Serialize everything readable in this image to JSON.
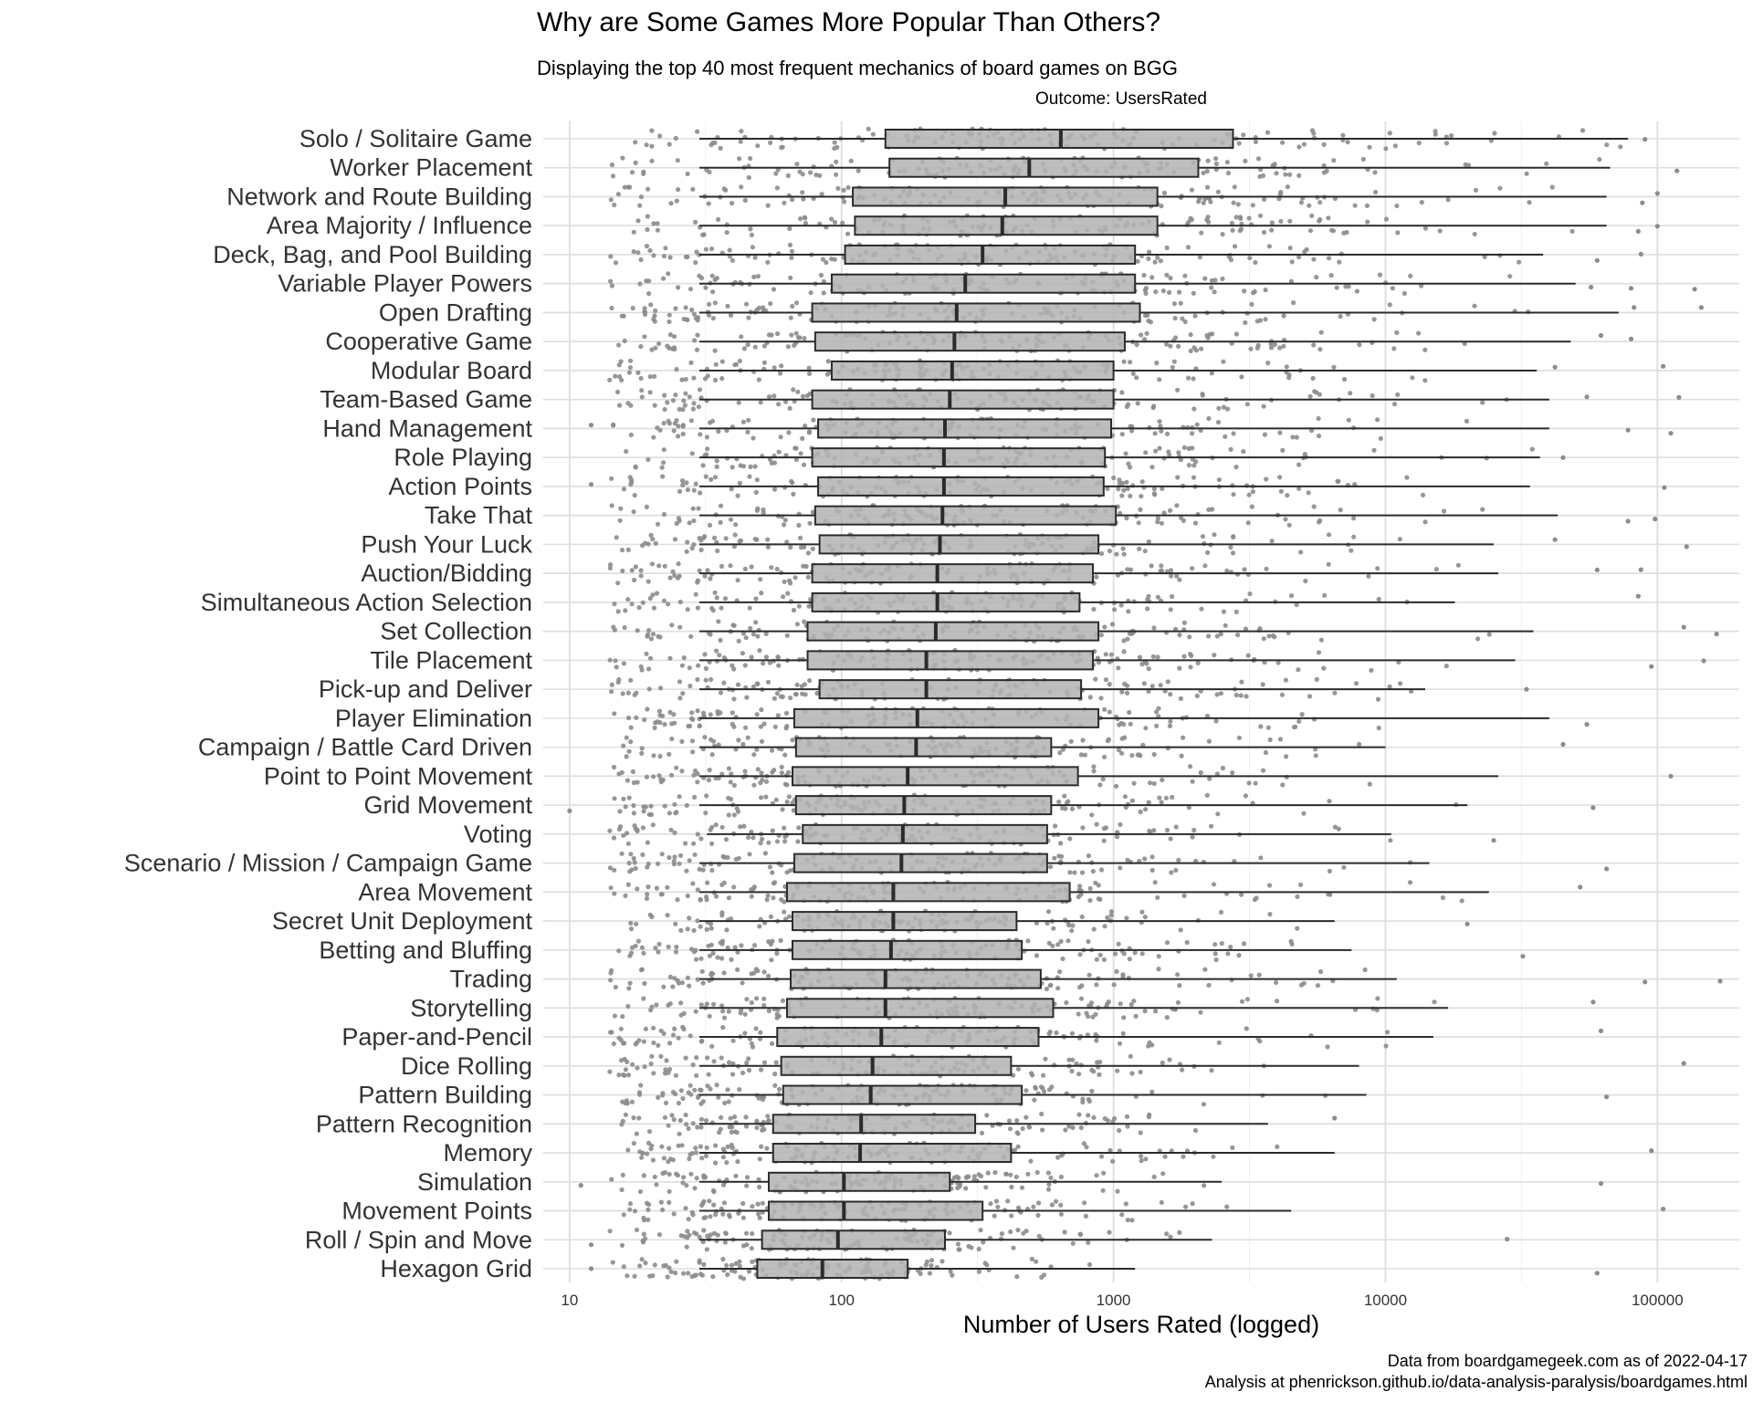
{
  "chart_data": {
    "type": "boxplot",
    "title": "Why are Some Games More Popular Than Others?",
    "subtitle": "Displaying the top 40 most frequent mechanics of board games on BGG",
    "facet_label": "Outcome: UsersRated",
    "xlabel": "Number of Users Rated (logged)",
    "ylabel": "",
    "x_scale": "log10",
    "xlim": [
      8,
      200000
    ],
    "x_ticks": [
      10,
      100,
      1000,
      10000,
      100000
    ],
    "x_tick_labels": [
      "10",
      "100",
      "1000",
      "10000",
      "100000"
    ],
    "grid": true,
    "caption": [
      "Data from boardgamegeek.com as of 2022-04-17",
      "Analysis at phenrickson.github.io/data-analysis-paralysis/boardgames.html"
    ],
    "colors": {
      "points": "#8c8c8c",
      "box_fill": "#b3b3b3",
      "box_line": "#2b2b2b",
      "grid": "#dedede"
    },
    "series": [
      {
        "name": "Solo / Solitaire Game",
        "lower": 30,
        "q1": 145,
        "median": 640,
        "q3": 2750,
        "upper": 78000,
        "outliers": [
          90000
        ]
      },
      {
        "name": "Worker Placement",
        "lower": 30,
        "q1": 150,
        "median": 490,
        "q3": 2050,
        "upper": 67000,
        "outliers": [
          118000
        ]
      },
      {
        "name": "Network and Route Building",
        "lower": 30,
        "q1": 110,
        "median": 400,
        "q3": 1450,
        "upper": 65000,
        "outliers": [
          88000,
          100000
        ]
      },
      {
        "name": "Area Majority / Influence",
        "lower": 30,
        "q1": 112,
        "median": 390,
        "q3": 1450,
        "upper": 65000,
        "outliers": [
          85000,
          100000
        ]
      },
      {
        "name": "Deck, Bag, and Pool Building",
        "lower": 30,
        "q1": 103,
        "median": 330,
        "q3": 1200,
        "upper": 38000,
        "outliers": [
          60000,
          87000
        ]
      },
      {
        "name": "Variable Player Powers",
        "lower": 30,
        "q1": 92,
        "median": 285,
        "q3": 1200,
        "upper": 50000,
        "outliers": [
          57000,
          80000,
          137000
        ]
      },
      {
        "name": "Open Drafting",
        "lower": 30,
        "q1": 78,
        "median": 265,
        "q3": 1250,
        "upper": 72000,
        "outliers": [
          82000,
          145000
        ]
      },
      {
        "name": "Cooperative Game",
        "lower": 30,
        "q1": 80,
        "median": 260,
        "q3": 1100,
        "upper": 48000,
        "outliers": [
          62000,
          80000
        ]
      },
      {
        "name": "Modular Board",
        "lower": 30,
        "q1": 92,
        "median": 255,
        "q3": 1000,
        "upper": 36000,
        "outliers": [
          42000,
          105000
        ]
      },
      {
        "name": "Team-Based Game",
        "lower": 30,
        "q1": 78,
        "median": 250,
        "q3": 1000,
        "upper": 40000,
        "outliers": [
          55000,
          120000
        ]
      },
      {
        "name": "Hand Management",
        "lower": 30,
        "q1": 82,
        "median": 240,
        "q3": 980,
        "upper": 40000,
        "outliers": [
          12,
          78000,
          112000
        ]
      },
      {
        "name": "Role Playing",
        "lower": 30,
        "q1": 78,
        "median": 238,
        "q3": 930,
        "upper": 37000,
        "outliers": [
          45000
        ]
      },
      {
        "name": "Action Points",
        "lower": 30,
        "q1": 82,
        "median": 238,
        "q3": 920,
        "upper": 34000,
        "outliers": [
          12,
          106000
        ]
      },
      {
        "name": "Take That",
        "lower": 30,
        "q1": 80,
        "median": 235,
        "q3": 1020,
        "upper": 43000,
        "outliers": [
          78000,
          98000
        ]
      },
      {
        "name": "Push Your Luck",
        "lower": 30,
        "q1": 83,
        "median": 230,
        "q3": 880,
        "upper": 25000,
        "outliers": [
          42000,
          128000
        ]
      },
      {
        "name": "Auction/Bidding",
        "lower": 30,
        "q1": 78,
        "median": 225,
        "q3": 840,
        "upper": 26000,
        "outliers": [
          60000,
          87000
        ]
      },
      {
        "name": "Simultaneous Action Selection",
        "lower": 30,
        "q1": 78,
        "median": 225,
        "q3": 750,
        "upper": 18000,
        "outliers": [
          85000
        ]
      },
      {
        "name": "Set Collection",
        "lower": 30,
        "q1": 75,
        "median": 222,
        "q3": 880,
        "upper": 35000,
        "outliers": [
          125000,
          165000
        ]
      },
      {
        "name": "Tile Placement",
        "lower": 30,
        "q1": 75,
        "median": 205,
        "q3": 840,
        "upper": 30000,
        "outliers": [
          95000,
          148000
        ]
      },
      {
        "name": "Pick-up and Deliver",
        "lower": 30,
        "q1": 83,
        "median": 205,
        "q3": 760,
        "upper": 14000,
        "outliers": [
          33000
        ]
      },
      {
        "name": "Player Elimination",
        "lower": 30,
        "q1": 67,
        "median": 190,
        "q3": 880,
        "upper": 40000,
        "outliers": [
          55000
        ]
      },
      {
        "name": "Campaign / Battle Card Driven",
        "lower": 30,
        "q1": 68,
        "median": 188,
        "q3": 590,
        "upper": 10000,
        "outliers": [
          45000
        ]
      },
      {
        "name": "Point to Point Movement",
        "lower": 30,
        "q1": 66,
        "median": 175,
        "q3": 740,
        "upper": 26000,
        "outliers": [
          112000
        ]
      },
      {
        "name": "Grid Movement",
        "lower": 30,
        "q1": 68,
        "median": 170,
        "q3": 590,
        "upper": 20000,
        "outliers": [
          10,
          58000
        ]
      },
      {
        "name": "Voting",
        "lower": 32,
        "q1": 72,
        "median": 168,
        "q3": 570,
        "upper": 10500,
        "outliers": [
          25000
        ]
      },
      {
        "name": "Scenario / Mission / Campaign Game",
        "lower": 30,
        "q1": 67,
        "median": 166,
        "q3": 570,
        "upper": 14500,
        "outliers": [
          65000
        ]
      },
      {
        "name": "Area Movement",
        "lower": 30,
        "q1": 63,
        "median": 155,
        "q3": 690,
        "upper": 24000,
        "outliers": [
          52000
        ]
      },
      {
        "name": "Secret Unit Deployment",
        "lower": 30,
        "q1": 66,
        "median": 155,
        "q3": 440,
        "upper": 6500,
        "outliers": [
          20000
        ]
      },
      {
        "name": "Betting and Bluffing",
        "lower": 30,
        "q1": 66,
        "median": 152,
        "q3": 460,
        "upper": 7500,
        "outliers": [
          32000
        ]
      },
      {
        "name": "Trading",
        "lower": 30,
        "q1": 65,
        "median": 145,
        "q3": 540,
        "upper": 11000,
        "outliers": [
          90000,
          170000
        ]
      },
      {
        "name": "Storytelling",
        "lower": 30,
        "q1": 63,
        "median": 145,
        "q3": 600,
        "upper": 17000,
        "outliers": [
          58000
        ]
      },
      {
        "name": "Paper-and-Pencil",
        "lower": 30,
        "q1": 58,
        "median": 140,
        "q3": 530,
        "upper": 15000,
        "outliers": [
          62000
        ]
      },
      {
        "name": "Dice Rolling",
        "lower": 30,
        "q1": 60,
        "median": 130,
        "q3": 420,
        "upper": 8000,
        "outliers": [
          125000
        ]
      },
      {
        "name": "Pattern Building",
        "lower": 30,
        "q1": 61,
        "median": 128,
        "q3": 460,
        "upper": 8500,
        "outliers": [
          65000
        ]
      },
      {
        "name": "Pattern Recognition",
        "lower": 30,
        "q1": 56,
        "median": 118,
        "q3": 310,
        "upper": 3700,
        "outliers": [
          6500
        ]
      },
      {
        "name": "Memory",
        "lower": 30,
        "q1": 56,
        "median": 117,
        "q3": 420,
        "upper": 6500,
        "outliers": [
          95000
        ]
      },
      {
        "name": "Simulation",
        "lower": 30,
        "q1": 54,
        "median": 102,
        "q3": 250,
        "upper": 2500,
        "outliers": [
          11,
          62000
        ]
      },
      {
        "name": "Movement Points",
        "lower": 30,
        "q1": 54,
        "median": 102,
        "q3": 330,
        "upper": 4500,
        "outliers": [
          105000
        ]
      },
      {
        "name": "Roll / Spin and Move",
        "lower": 30,
        "q1": 51,
        "median": 97,
        "q3": 240,
        "upper": 2300,
        "outliers": [
          12,
          28000
        ]
      },
      {
        "name": "Hexagon Grid",
        "lower": 30,
        "q1": 49,
        "median": 85,
        "q3": 175,
        "upper": 1200,
        "outliers": [
          12,
          60000
        ]
      }
    ]
  }
}
